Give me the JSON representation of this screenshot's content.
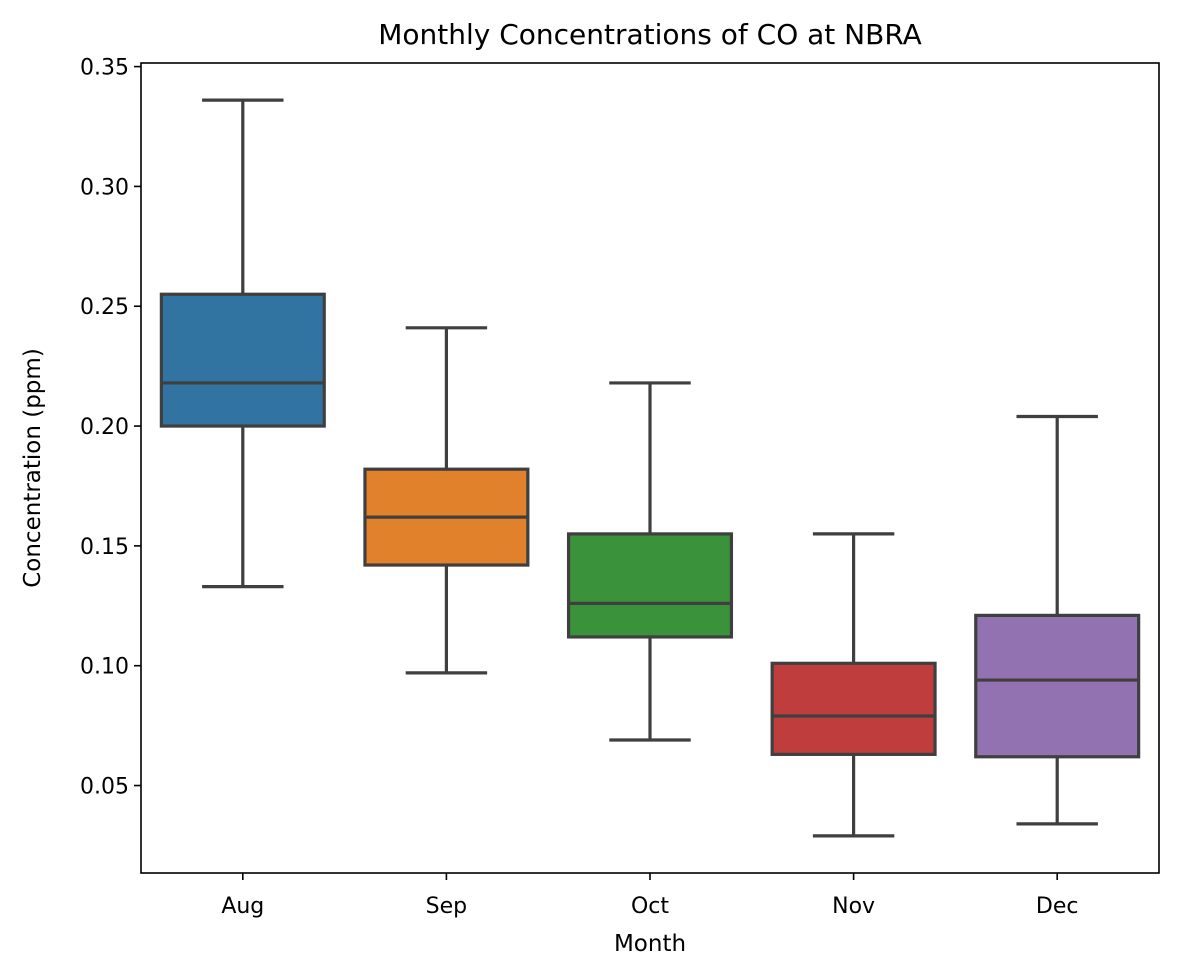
{
  "chart_data": {
    "type": "box",
    "title": "Monthly Concentrations of CO at NBRA",
    "xlabel": "Month",
    "ylabel": "Concentration (ppm)",
    "ylim": [
      0.0135,
      0.3515
    ],
    "yticks": [
      "0.05",
      "0.10",
      "0.15",
      "0.20",
      "0.25",
      "0.30",
      "0.35"
    ],
    "grid": false,
    "categories": [
      "Aug",
      "Sep",
      "Oct",
      "Nov",
      "Dec"
    ],
    "boxes": [
      {
        "category": "Aug",
        "whisker_low": 0.133,
        "q1": 0.2,
        "median": 0.218,
        "q3": 0.255,
        "whisker_high": 0.336,
        "color": "#3274a1"
      },
      {
        "category": "Sep",
        "whisker_low": 0.097,
        "q1": 0.142,
        "median": 0.162,
        "q3": 0.182,
        "whisker_high": 0.241,
        "color": "#e1812c"
      },
      {
        "category": "Oct",
        "whisker_low": 0.069,
        "q1": 0.112,
        "median": 0.126,
        "q3": 0.155,
        "whisker_high": 0.218,
        "color": "#3a923a"
      },
      {
        "category": "Nov",
        "whisker_low": 0.029,
        "q1": 0.063,
        "median": 0.079,
        "q3": 0.101,
        "whisker_high": 0.155,
        "color": "#c03d3e"
      },
      {
        "category": "Dec",
        "whisker_low": 0.034,
        "q1": 0.062,
        "median": 0.094,
        "q3": 0.121,
        "whisker_high": 0.204,
        "color": "#9372b2"
      }
    ],
    "line_color": "#3f3f3f"
  }
}
